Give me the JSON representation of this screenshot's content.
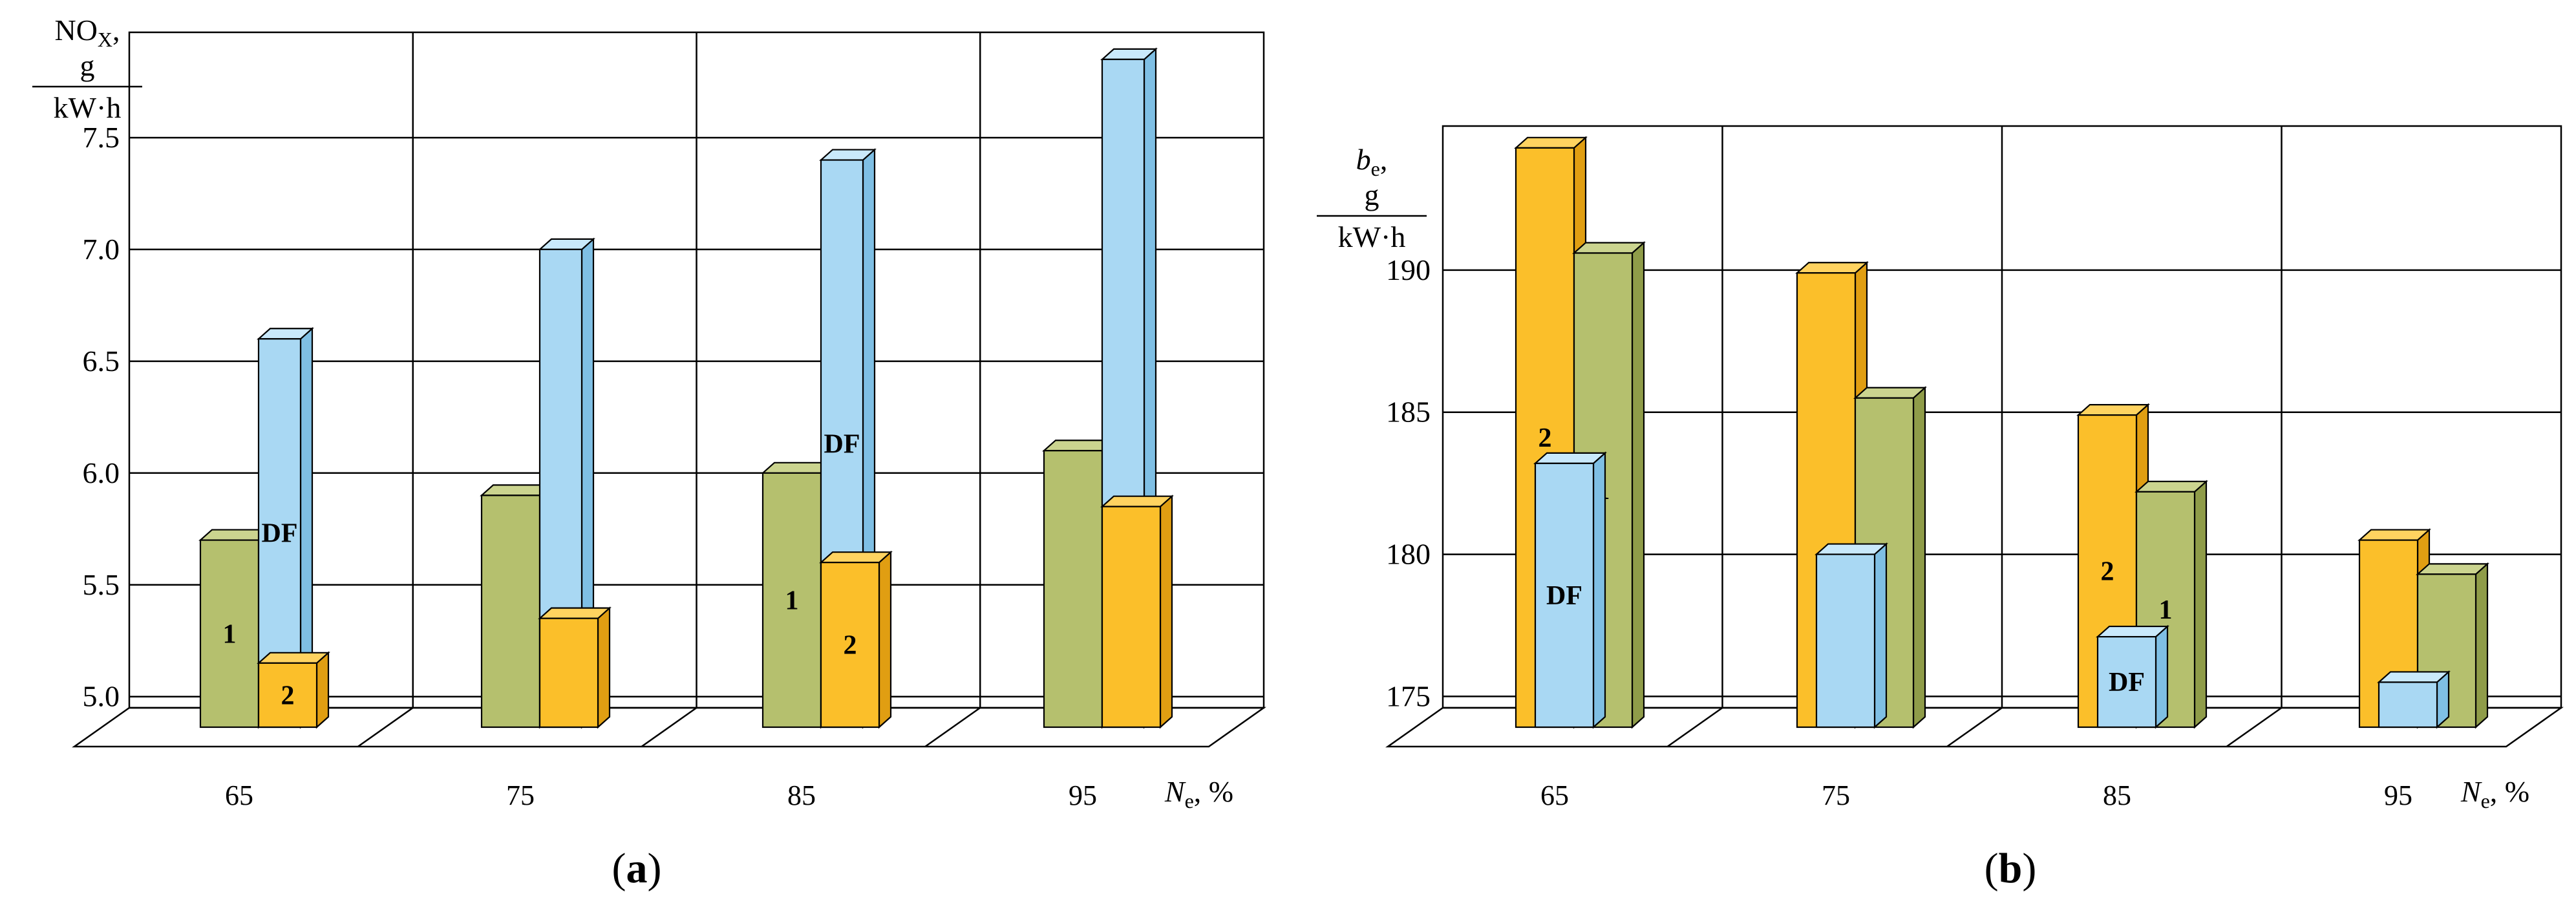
{
  "colors": {
    "series_1_front": "#b5c06e",
    "series_1_side": "#8f9c49",
    "series_1_top": "#cbd48f",
    "series_2_front": "#fbbf2a",
    "series_2_side": "#e09e12",
    "series_2_top": "#ffd360",
    "series_DF_front": "#a9d8f3",
    "series_DF_side": "#7fbfe4",
    "series_DF_top": "#c9e9fb"
  },
  "chart_data": [
    {
      "type": "bar",
      "caption": "a",
      "ylabel_main": "NO",
      "ylabel_sub": "X",
      "ylabel_num": "g",
      "ylabel_den": "kW·h",
      "xlabel": "N",
      "xlabel_sub": "e",
      "xlabel_unit": ", %",
      "categories": [
        "65",
        "75",
        "85",
        "95"
      ],
      "y_ticks": [
        "5.0",
        "5.5",
        "6.0",
        "6.5",
        "7.0",
        "7.5"
      ],
      "ylim": [
        4.95,
        8.0
      ],
      "series": [
        {
          "label": "1",
          "values": [
            5.7,
            5.9,
            6.0,
            6.1
          ],
          "labels_visible": [
            true,
            false,
            true,
            false
          ]
        },
        {
          "label": "DF",
          "values": [
            6.6,
            7.0,
            7.4,
            7.85
          ],
          "labels_visible": [
            true,
            false,
            true,
            false
          ]
        },
        {
          "label": "2",
          "values": [
            5.15,
            5.35,
            5.6,
            5.85
          ],
          "labels_visible": [
            true,
            false,
            true,
            false
          ]
        }
      ]
    },
    {
      "type": "bar",
      "caption": "b",
      "ylabel_main": "b",
      "ylabel_sub": "e",
      "ylabel_num": "g",
      "ylabel_den": "kW·h",
      "xlabel": "N",
      "xlabel_sub": "e",
      "xlabel_unit": ", %",
      "categories": [
        "65",
        "75",
        "85",
        "95"
      ],
      "y_ticks": [
        "175",
        "180",
        "185",
        "190"
      ],
      "ylim": [
        174.6,
        194.5
      ],
      "series": [
        {
          "label": "2",
          "values": [
            194.3,
            189.9,
            184.9,
            180.5
          ],
          "labels_visible": [
            true,
            false,
            true,
            false
          ]
        },
        {
          "label": "1",
          "values": [
            190.6,
            185.5,
            182.2,
            179.3
          ],
          "labels_visible": [
            true,
            false,
            true,
            false
          ]
        },
        {
          "label": "DF",
          "values": [
            183.2,
            180.0,
            177.1,
            175.5
          ],
          "labels_visible": [
            true,
            false,
            true,
            false
          ]
        }
      ]
    }
  ]
}
